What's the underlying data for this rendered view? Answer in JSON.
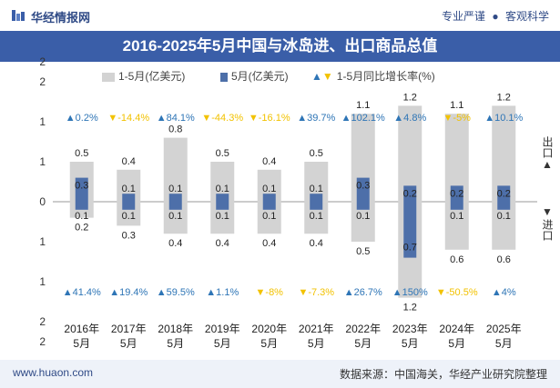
{
  "header": {
    "brand": "华经情报网",
    "tagline_left": "专业严谨",
    "tagline_dot": "●",
    "tagline_right": "客观科学"
  },
  "title": "2016-2025年5月中国与冰岛进、出口商品总值",
  "legend": {
    "cumulative": "1-5月(亿美元)",
    "monthly": "5月(亿美元)",
    "growth": "1-5月同比增长率(%)"
  },
  "side": {
    "export_label": "出口",
    "export_arrow": "▲",
    "import_label": "进口",
    "import_arrow": "▼"
  },
  "footer": {
    "site": "www.huaon.com",
    "source": "数据来源：中国海关，华经产业研究院整理"
  },
  "colors": {
    "cumulative_bar": "#d3d3d3",
    "monthly_bar": "#4d6fa9",
    "growth_up": "#2e75b6",
    "growth_down": "#f2c200",
    "title_bg": "#3a5ea8"
  },
  "chart_data": {
    "type": "bar",
    "categories": [
      "2016年\n5月",
      "2017年\n5月",
      "2018年\n5月",
      "2019年\n5月",
      "2020年\n5月",
      "2021年\n5月",
      "2022年\n5月",
      "2023年\n5月",
      "2024年\n5月",
      "2025年\n5月"
    ],
    "y_tick_labels": [
      "2",
      "2",
      "1",
      "1",
      "0",
      "1",
      "1",
      "2",
      "2"
    ],
    "series": [
      {
        "name": "1-5月(亿美元)",
        "direction": "export",
        "values": [
          0.5,
          0.4,
          0.8,
          0.5,
          0.4,
          0.5,
          1.1,
          1.2,
          1.1,
          1.2
        ]
      },
      {
        "name": "1-5月(亿美元)",
        "direction": "import",
        "values": [
          0.2,
          0.3,
          0.4,
          0.4,
          0.4,
          0.4,
          0.5,
          1.2,
          0.6,
          0.6
        ]
      },
      {
        "name": "5月(亿美元)",
        "direction": "export",
        "values": [
          0.3,
          0.1,
          0.1,
          0.1,
          0.1,
          0.1,
          0.3,
          0.2,
          0.2,
          0.2
        ]
      },
      {
        "name": "5月(亿美元)",
        "direction": "import",
        "values": [
          0.1,
          0.1,
          0.1,
          0.1,
          0.1,
          0.1,
          0.1,
          0.7,
          0.1,
          0.1
        ]
      }
    ],
    "growth_export": [
      {
        "label": "0.2%",
        "dir": "up"
      },
      {
        "label": "-14.4%",
        "dir": "down"
      },
      {
        "label": "84.1%",
        "dir": "up"
      },
      {
        "label": "-44.3%",
        "dir": "down"
      },
      {
        "label": "-16.1%",
        "dir": "down"
      },
      {
        "label": "39.7%",
        "dir": "up"
      },
      {
        "label": "102.1%",
        "dir": "up"
      },
      {
        "label": "4.8%",
        "dir": "up"
      },
      {
        "label": "-5%",
        "dir": "down"
      },
      {
        "label": "10.1%",
        "dir": "up"
      }
    ],
    "growth_import": [
      {
        "label": "41.4%",
        "dir": "up"
      },
      {
        "label": "19.4%",
        "dir": "up"
      },
      {
        "label": "59.5%",
        "dir": "up"
      },
      {
        "label": "1.1%",
        "dir": "up"
      },
      {
        "label": "-8%",
        "dir": "down"
      },
      {
        "label": "-7.3%",
        "dir": "down"
      },
      {
        "label": "26.7%",
        "dir": "up"
      },
      {
        "label": "150%",
        "dir": "up"
      },
      {
        "label": "-50.5%",
        "dir": "down"
      },
      {
        "label": "4%",
        "dir": "up"
      }
    ],
    "ylim": [
      -1.5,
      1.5
    ],
    "grid": false,
    "legend_position": "top"
  }
}
